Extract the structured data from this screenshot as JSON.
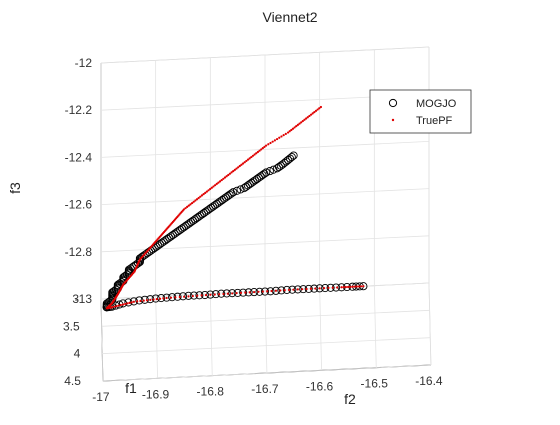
{
  "chart_data": {
    "type": "scatter",
    "title": "Viennet2",
    "xlabel": "f1",
    "ylabel": "f2",
    "zlabel": "f3",
    "grid": true,
    "legend_position": "top-right",
    "xlim": [
      3,
      4.5
    ],
    "ylim": [
      -17,
      -16.4
    ],
    "zlim": [
      -13,
      -12
    ],
    "x_ticks": [
      "3",
      "3.5",
      "4",
      "4.5"
    ],
    "y_ticks": [
      "-17",
      "-16.9",
      "-16.8",
      "-16.7",
      "-16.6",
      "-16.5",
      "-16.4"
    ],
    "z_ticks": [
      "-13",
      "-12.8",
      "-12.6",
      "-12.4",
      "-12.2",
      "-12"
    ],
    "series": [
      {
        "name": "MOGJO",
        "marker": "circle",
        "color": "#000000",
        "points": [
          [
            4.0,
            -16.65,
            -12.2
          ],
          [
            3.99,
            -16.66,
            -12.22
          ],
          [
            3.98,
            -16.67,
            -12.24
          ],
          [
            3.96,
            -16.68,
            -12.26
          ],
          [
            3.94,
            -16.7,
            -12.28
          ],
          [
            3.92,
            -16.71,
            -12.3
          ],
          [
            3.9,
            -16.72,
            -12.32
          ],
          [
            3.88,
            -16.73,
            -12.34
          ],
          [
            3.86,
            -16.74,
            -12.36
          ],
          [
            3.84,
            -16.76,
            -12.38
          ],
          [
            3.82,
            -16.77,
            -12.4
          ],
          [
            3.8,
            -16.78,
            -12.42
          ],
          [
            3.78,
            -16.79,
            -12.44
          ],
          [
            3.76,
            -16.8,
            -12.46
          ],
          [
            3.74,
            -16.81,
            -12.48
          ],
          [
            3.72,
            -16.82,
            -12.5
          ],
          [
            3.7,
            -16.83,
            -12.52
          ],
          [
            3.68,
            -16.84,
            -12.54
          ],
          [
            3.66,
            -16.85,
            -12.56
          ],
          [
            3.64,
            -16.86,
            -12.58
          ],
          [
            3.62,
            -16.87,
            -12.6
          ],
          [
            3.6,
            -16.88,
            -12.62
          ],
          [
            3.58,
            -16.89,
            -12.64
          ],
          [
            3.56,
            -16.9,
            -12.66
          ],
          [
            3.54,
            -16.91,
            -12.68
          ],
          [
            3.52,
            -16.92,
            -12.7
          ],
          [
            3.5,
            -16.93,
            -12.72
          ],
          [
            3.48,
            -16.93,
            -12.74
          ],
          [
            3.46,
            -16.94,
            -12.76
          ],
          [
            3.44,
            -16.95,
            -12.78
          ],
          [
            3.42,
            -16.95,
            -12.8
          ],
          [
            3.4,
            -16.96,
            -12.82
          ],
          [
            3.38,
            -16.96,
            -12.84
          ],
          [
            3.36,
            -16.97,
            -12.86
          ],
          [
            3.34,
            -16.97,
            -12.88
          ],
          [
            3.32,
            -16.98,
            -12.9
          ],
          [
            3.3,
            -16.98,
            -12.92
          ],
          [
            3.28,
            -16.98,
            -12.94
          ],
          [
            3.26,
            -16.99,
            -12.96
          ],
          [
            3.24,
            -16.99,
            -12.98
          ],
          [
            3.2,
            -16.99,
            -12.99
          ],
          [
            3.15,
            -16.98,
            -13.0
          ],
          [
            3.1,
            -16.96,
            -13.0
          ],
          [
            3.06,
            -16.93,
            -13.0
          ],
          [
            3.04,
            -16.9,
            -13.0
          ],
          [
            3.03,
            -16.87,
            -13.0
          ],
          [
            3.02,
            -16.84,
            -13.0
          ],
          [
            3.02,
            -16.81,
            -13.0
          ],
          [
            3.01,
            -16.78,
            -13.0
          ],
          [
            3.01,
            -16.75,
            -13.0
          ],
          [
            3.01,
            -16.72,
            -13.0
          ],
          [
            3.01,
            -16.69,
            -13.0
          ],
          [
            3.0,
            -16.66,
            -13.0
          ],
          [
            3.0,
            -16.63,
            -13.0
          ],
          [
            3.0,
            -16.6,
            -13.0
          ],
          [
            3.0,
            -16.57,
            -13.0
          ],
          [
            3.0,
            -16.54,
            -13.0
          ],
          [
            3.0,
            -16.52,
            -13.0
          ]
        ]
      },
      {
        "name": "TruePF",
        "marker": "dot",
        "color": "#e00000",
        "points": [
          [
            4.0,
            -16.6,
            -12.0
          ],
          [
            3.96,
            -16.63,
            -12.06
          ],
          [
            3.92,
            -16.66,
            -12.12
          ],
          [
            3.88,
            -16.7,
            -12.18
          ],
          [
            3.84,
            -16.73,
            -12.24
          ],
          [
            3.8,
            -16.76,
            -12.3
          ],
          [
            3.76,
            -16.79,
            -12.36
          ],
          [
            3.72,
            -16.82,
            -12.42
          ],
          [
            3.68,
            -16.85,
            -12.48
          ],
          [
            3.64,
            -16.87,
            -12.54
          ],
          [
            3.6,
            -16.89,
            -12.6
          ],
          [
            3.56,
            -16.91,
            -12.66
          ],
          [
            3.52,
            -16.93,
            -12.72
          ],
          [
            3.48,
            -16.94,
            -12.78
          ],
          [
            3.44,
            -16.96,
            -12.84
          ],
          [
            3.4,
            -16.97,
            -12.89
          ],
          [
            3.34,
            -16.98,
            -12.94
          ],
          [
            3.26,
            -16.99,
            -12.98
          ],
          [
            3.16,
            -16.98,
            -13.0
          ],
          [
            3.08,
            -16.94,
            -13.0
          ],
          [
            3.04,
            -16.88,
            -13.0
          ],
          [
            3.02,
            -16.8,
            -13.0
          ],
          [
            3.01,
            -16.72,
            -13.0
          ],
          [
            3.0,
            -16.64,
            -13.0
          ],
          [
            3.0,
            -16.56,
            -13.0
          ],
          [
            3.0,
            -16.52,
            -13.0
          ]
        ]
      }
    ]
  }
}
